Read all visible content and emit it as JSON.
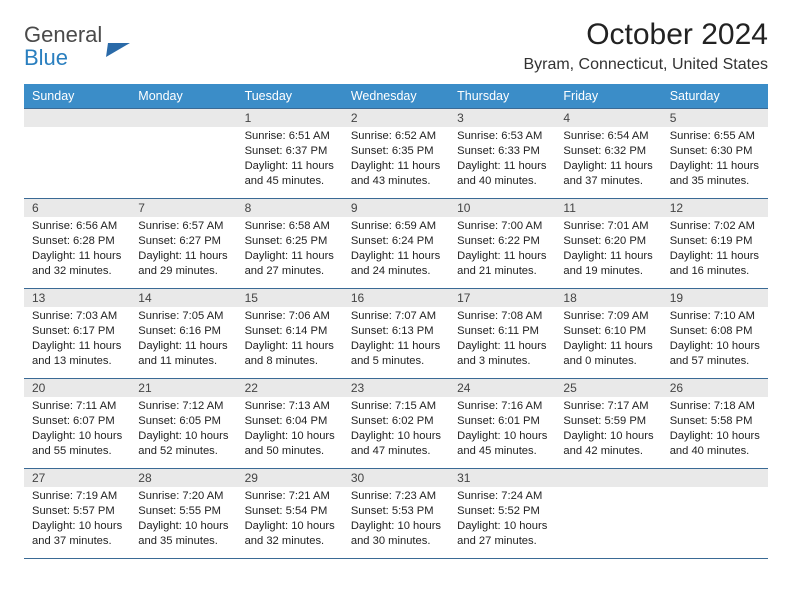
{
  "logo": {
    "line1": "General",
    "line2": "Blue"
  },
  "title": "October 2024",
  "location": "Byram, Connecticut, United States",
  "day_headers": [
    "Sunday",
    "Monday",
    "Tuesday",
    "Wednesday",
    "Thursday",
    "Friday",
    "Saturday"
  ],
  "colors": {
    "header_bg": "#3b8dc8",
    "header_fg": "#ffffff",
    "cell_border": "#3a6a95",
    "daynum_bg": "#e9e9e9",
    "logo_accent": "#2a7fbf",
    "page_bg": "#ffffff"
  },
  "typography": {
    "title_fontsize_pt": 22,
    "location_fontsize_pt": 12,
    "header_fontsize_pt": 9.5,
    "body_fontsize_pt": 8.5,
    "font_family": "Arial"
  },
  "layout": {
    "columns": 7,
    "rows": 5,
    "first_weekday_index_of_day1": 2,
    "days_in_month": 31
  },
  "cells": [
    [
      null,
      null,
      {
        "n": "1",
        "sunrise": "6:51 AM",
        "sunset": "6:37 PM",
        "dl1": "Daylight: 11 hours",
        "dl2": "and 45 minutes."
      },
      {
        "n": "2",
        "sunrise": "6:52 AM",
        "sunset": "6:35 PM",
        "dl1": "Daylight: 11 hours",
        "dl2": "and 43 minutes."
      },
      {
        "n": "3",
        "sunrise": "6:53 AM",
        "sunset": "6:33 PM",
        "dl1": "Daylight: 11 hours",
        "dl2": "and 40 minutes."
      },
      {
        "n": "4",
        "sunrise": "6:54 AM",
        "sunset": "6:32 PM",
        "dl1": "Daylight: 11 hours",
        "dl2": "and 37 minutes."
      },
      {
        "n": "5",
        "sunrise": "6:55 AM",
        "sunset": "6:30 PM",
        "dl1": "Daylight: 11 hours",
        "dl2": "and 35 minutes."
      }
    ],
    [
      {
        "n": "6",
        "sunrise": "6:56 AM",
        "sunset": "6:28 PM",
        "dl1": "Daylight: 11 hours",
        "dl2": "and 32 minutes."
      },
      {
        "n": "7",
        "sunrise": "6:57 AM",
        "sunset": "6:27 PM",
        "dl1": "Daylight: 11 hours",
        "dl2": "and 29 minutes."
      },
      {
        "n": "8",
        "sunrise": "6:58 AM",
        "sunset": "6:25 PM",
        "dl1": "Daylight: 11 hours",
        "dl2": "and 27 minutes."
      },
      {
        "n": "9",
        "sunrise": "6:59 AM",
        "sunset": "6:24 PM",
        "dl1": "Daylight: 11 hours",
        "dl2": "and 24 minutes."
      },
      {
        "n": "10",
        "sunrise": "7:00 AM",
        "sunset": "6:22 PM",
        "dl1": "Daylight: 11 hours",
        "dl2": "and 21 minutes."
      },
      {
        "n": "11",
        "sunrise": "7:01 AM",
        "sunset": "6:20 PM",
        "dl1": "Daylight: 11 hours",
        "dl2": "and 19 minutes."
      },
      {
        "n": "12",
        "sunrise": "7:02 AM",
        "sunset": "6:19 PM",
        "dl1": "Daylight: 11 hours",
        "dl2": "and 16 minutes."
      }
    ],
    [
      {
        "n": "13",
        "sunrise": "7:03 AM",
        "sunset": "6:17 PM",
        "dl1": "Daylight: 11 hours",
        "dl2": "and 13 minutes."
      },
      {
        "n": "14",
        "sunrise": "7:05 AM",
        "sunset": "6:16 PM",
        "dl1": "Daylight: 11 hours",
        "dl2": "and 11 minutes."
      },
      {
        "n": "15",
        "sunrise": "7:06 AM",
        "sunset": "6:14 PM",
        "dl1": "Daylight: 11 hours",
        "dl2": "and 8 minutes."
      },
      {
        "n": "16",
        "sunrise": "7:07 AM",
        "sunset": "6:13 PM",
        "dl1": "Daylight: 11 hours",
        "dl2": "and 5 minutes."
      },
      {
        "n": "17",
        "sunrise": "7:08 AM",
        "sunset": "6:11 PM",
        "dl1": "Daylight: 11 hours",
        "dl2": "and 3 minutes."
      },
      {
        "n": "18",
        "sunrise": "7:09 AM",
        "sunset": "6:10 PM",
        "dl1": "Daylight: 11 hours",
        "dl2": "and 0 minutes."
      },
      {
        "n": "19",
        "sunrise": "7:10 AM",
        "sunset": "6:08 PM",
        "dl1": "Daylight: 10 hours",
        "dl2": "and 57 minutes."
      }
    ],
    [
      {
        "n": "20",
        "sunrise": "7:11 AM",
        "sunset": "6:07 PM",
        "dl1": "Daylight: 10 hours",
        "dl2": "and 55 minutes."
      },
      {
        "n": "21",
        "sunrise": "7:12 AM",
        "sunset": "6:05 PM",
        "dl1": "Daylight: 10 hours",
        "dl2": "and 52 minutes."
      },
      {
        "n": "22",
        "sunrise": "7:13 AM",
        "sunset": "6:04 PM",
        "dl1": "Daylight: 10 hours",
        "dl2": "and 50 minutes."
      },
      {
        "n": "23",
        "sunrise": "7:15 AM",
        "sunset": "6:02 PM",
        "dl1": "Daylight: 10 hours",
        "dl2": "and 47 minutes."
      },
      {
        "n": "24",
        "sunrise": "7:16 AM",
        "sunset": "6:01 PM",
        "dl1": "Daylight: 10 hours",
        "dl2": "and 45 minutes."
      },
      {
        "n": "25",
        "sunrise": "7:17 AM",
        "sunset": "5:59 PM",
        "dl1": "Daylight: 10 hours",
        "dl2": "and 42 minutes."
      },
      {
        "n": "26",
        "sunrise": "7:18 AM",
        "sunset": "5:58 PM",
        "dl1": "Daylight: 10 hours",
        "dl2": "and 40 minutes."
      }
    ],
    [
      {
        "n": "27",
        "sunrise": "7:19 AM",
        "sunset": "5:57 PM",
        "dl1": "Daylight: 10 hours",
        "dl2": "and 37 minutes."
      },
      {
        "n": "28",
        "sunrise": "7:20 AM",
        "sunset": "5:55 PM",
        "dl1": "Daylight: 10 hours",
        "dl2": "and 35 minutes."
      },
      {
        "n": "29",
        "sunrise": "7:21 AM",
        "sunset": "5:54 PM",
        "dl1": "Daylight: 10 hours",
        "dl2": "and 32 minutes."
      },
      {
        "n": "30",
        "sunrise": "7:23 AM",
        "sunset": "5:53 PM",
        "dl1": "Daylight: 10 hours",
        "dl2": "and 30 minutes."
      },
      {
        "n": "31",
        "sunrise": "7:24 AM",
        "sunset": "5:52 PM",
        "dl1": "Daylight: 10 hours",
        "dl2": "and 27 minutes."
      },
      null,
      null
    ]
  ],
  "labels": {
    "sunrise_prefix": "Sunrise: ",
    "sunset_prefix": "Sunset: "
  }
}
